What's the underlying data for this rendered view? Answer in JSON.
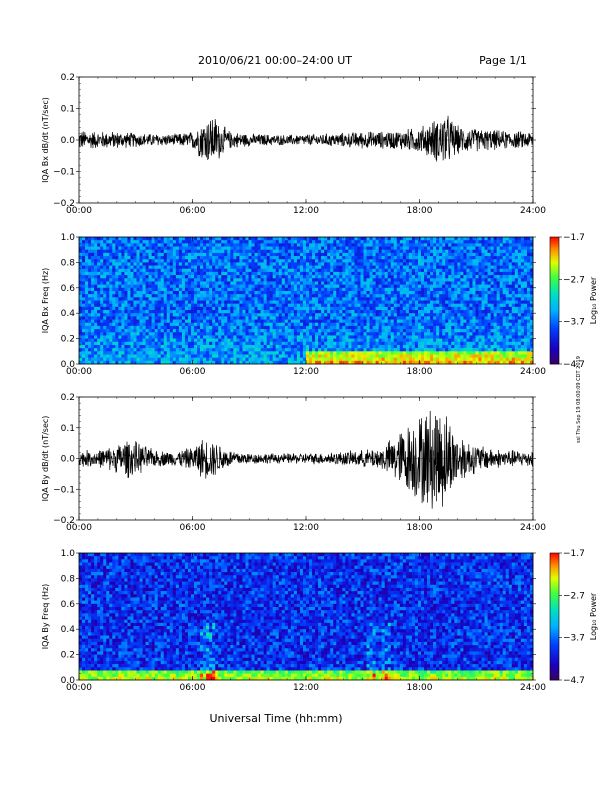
{
  "header": {
    "title": "2010/06/21  00:00–24:00 UT",
    "page": "Page 1/1"
  },
  "footer": {
    "xlabel": "Universal Time (hh:mm)"
  },
  "side_note": "ssl Thu Sep 19 08:00:09 CDT 2019",
  "chart_data": [
    {
      "type": "line",
      "ylabel": "IQA Bx dB/dt (nT/sec)",
      "xlim": [
        0,
        24
      ],
      "ylim": [
        -0.2,
        0.2
      ],
      "y_ticks": [
        "0.2",
        "0.1",
        "0.0",
        "−0.1",
        "−0.2"
      ],
      "x_ticks": [
        "00:00",
        "06:00",
        "12:00",
        "18:00",
        "24:00"
      ],
      "envelope": {
        "hours": [
          0,
          1,
          2,
          3,
          4,
          5,
          6,
          6.5,
          7,
          7.3,
          7.6,
          8,
          9,
          10,
          11,
          12,
          13,
          14,
          15,
          16,
          17,
          17.5,
          18,
          18.5,
          19,
          19.3,
          19.6,
          20,
          21,
          22,
          23,
          24
        ],
        "amplitude": [
          0.035,
          0.03,
          0.03,
          0.025,
          0.022,
          0.02,
          0.03,
          0.07,
          0.09,
          0.08,
          0.05,
          0.03,
          0.022,
          0.02,
          0.018,
          0.02,
          0.022,
          0.025,
          0.03,
          0.03,
          0.035,
          0.04,
          0.045,
          0.06,
          0.08,
          0.1,
          0.08,
          0.05,
          0.04,
          0.035,
          0.03,
          0.03
        ]
      }
    },
    {
      "type": "heatmap",
      "ylabel": "IQA Bx Freq (Hz)",
      "xlim": [
        0,
        24
      ],
      "ylim": [
        0,
        1
      ],
      "y_ticks": [
        "1.0",
        "0.8",
        "0.6",
        "0.4",
        "0.2",
        "0.0"
      ],
      "x_ticks": [
        "00:00",
        "06:00",
        "12:00",
        "18:00",
        "24:00"
      ],
      "colorbar": {
        "label": "Log₁₀ Power",
        "ticks": [
          "−1.7",
          "−2.7",
          "−3.7",
          "−4.7"
        ],
        "range": [
          -4.7,
          -1.7
        ]
      },
      "background_level": -3.7,
      "low_freq_enhancement": {
        "hours": [
          12,
          24
        ],
        "level": -2.7,
        "below_hz": 0.1
      }
    },
    {
      "type": "line",
      "ylabel": "IQA By dB/dt (nT/sec)",
      "xlim": [
        0,
        24
      ],
      "ylim": [
        -0.2,
        0.2
      ],
      "y_ticks": [
        "0.2",
        "0.1",
        "0.0",
        "−0.1",
        "−0.2"
      ],
      "x_ticks": [
        "00:00",
        "06:00",
        "12:00",
        "18:00",
        "24:00"
      ],
      "envelope": {
        "hours": [
          0,
          1,
          2,
          2.5,
          3,
          4,
          5,
          6,
          6.5,
          7,
          7.5,
          8,
          9,
          10,
          11,
          12,
          13,
          14,
          15,
          16,
          16.5,
          17,
          17.5,
          18,
          18.5,
          19,
          19.3,
          19.6,
          20,
          21,
          22,
          23,
          24
        ],
        "amplitude": [
          0.03,
          0.03,
          0.05,
          0.07,
          0.06,
          0.03,
          0.025,
          0.04,
          0.07,
          0.07,
          0.05,
          0.03,
          0.02,
          0.018,
          0.018,
          0.02,
          0.02,
          0.025,
          0.03,
          0.04,
          0.07,
          0.1,
          0.13,
          0.16,
          0.18,
          0.2,
          0.18,
          0.14,
          0.09,
          0.05,
          0.035,
          0.03,
          0.03
        ]
      }
    },
    {
      "type": "heatmap",
      "ylabel": "IQA By Freq (Hz)",
      "xlim": [
        0,
        24
      ],
      "ylim": [
        0,
        1
      ],
      "y_ticks": [
        "1.0",
        "0.8",
        "0.6",
        "0.4",
        "0.2",
        "0.0"
      ],
      "x_ticks": [
        "00:00",
        "06:00",
        "12:00",
        "18:00",
        "24:00"
      ],
      "colorbar": {
        "label": "Log₁₀ Power",
        "ticks": [
          "−1.7",
          "−2.7",
          "−3.7",
          "−4.7"
        ],
        "range": [
          -4.7,
          -1.7
        ]
      },
      "background_level": -4.0,
      "burst_hours": [
        6.7,
        7.0,
        15.5,
        16.2
      ],
      "low_freq_enhancement": {
        "hours": [
          0,
          24
        ],
        "level": -2.7,
        "below_hz": 0.08
      }
    }
  ]
}
